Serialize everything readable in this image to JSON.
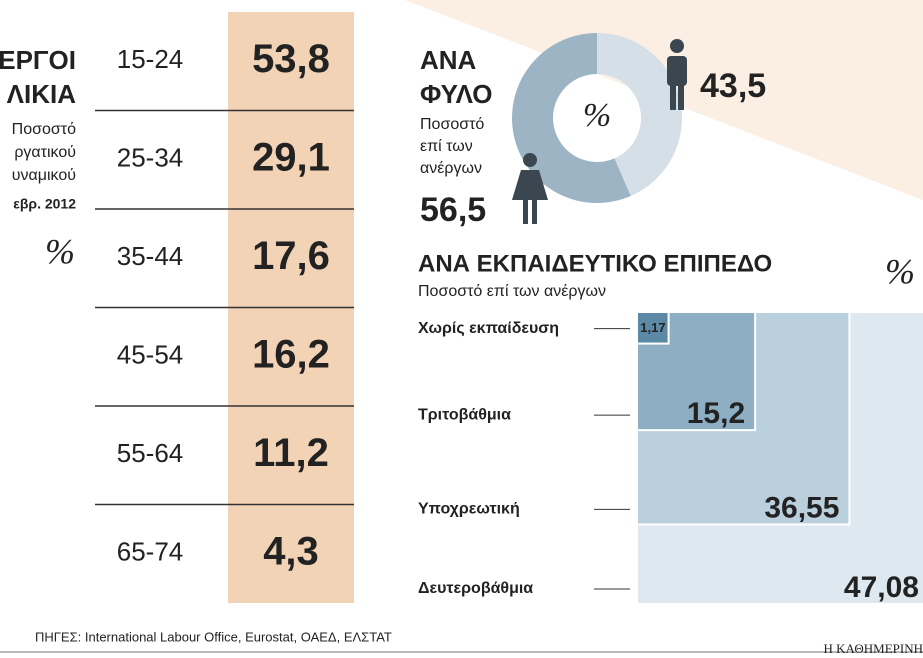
{
  "header": {
    "title_lines": [
      "ΕΡΓΟΙ",
      "ΛΙΚΙΑ"
    ],
    "subtitle_lines": [
      "Ποσοστό",
      "ργατικού",
      "υναμικού",
      "εβρ. 2012"
    ],
    "unit": "%"
  },
  "chart_data": [
    {
      "type": "column-table",
      "categories": [
        "15-24",
        "25-34",
        "35-44",
        "45-54",
        "55-64",
        "65-74"
      ],
      "values": [
        53.8,
        29.1,
        17.6,
        16.2,
        11.2,
        4.3
      ],
      "value_labels": [
        "53,8",
        "29,1",
        "17,6",
        "16,2",
        "11,2",
        "4,3"
      ],
      "color": "#f3d3b5"
    },
    {
      "type": "donut",
      "title_lines": [
        "ΑΝΑ",
        "ΦΥΛΟ"
      ],
      "subtitle_lines": [
        "Ποσοστό",
        "επί των",
        "ανέργων"
      ],
      "center_label": "%",
      "values": [
        43.5,
        56.5
      ],
      "value_labels": [
        "43,5",
        "56,5"
      ],
      "colors": [
        "#d5dfe7",
        "#9cb4c4"
      ]
    },
    {
      "type": "nested-squares",
      "title": "ΑΝΑ ΕΚΠΑΙΔΕΥΤΙΚΟ ΕΠΙΠΕΔΟ",
      "subtitle": "Ποσοστό επί των ανέργων",
      "unit": "%",
      "categories": [
        "Χωρίς εκπαίδευση",
        "Τριτοβάθμια",
        "Υποχρεωτική",
        "Δευτεροβάθμια"
      ],
      "values": [
        1.17,
        15.2,
        36.55,
        47.08
      ],
      "value_labels": [
        "1,17",
        "15,2",
        "36,55",
        "47,08"
      ],
      "colors": [
        "#5b89a6",
        "#8eafc3",
        "#bad0dd",
        "#dde8f0"
      ]
    }
  ],
  "footer": {
    "source": "ΠΗΓΕΣ: International Labour Office, Eurostat, ΟΑΕΔ, ΕΛΣΤΑΤ",
    "brand": "Η ΚΑΘΗΜΕΡΙΝΗ"
  }
}
